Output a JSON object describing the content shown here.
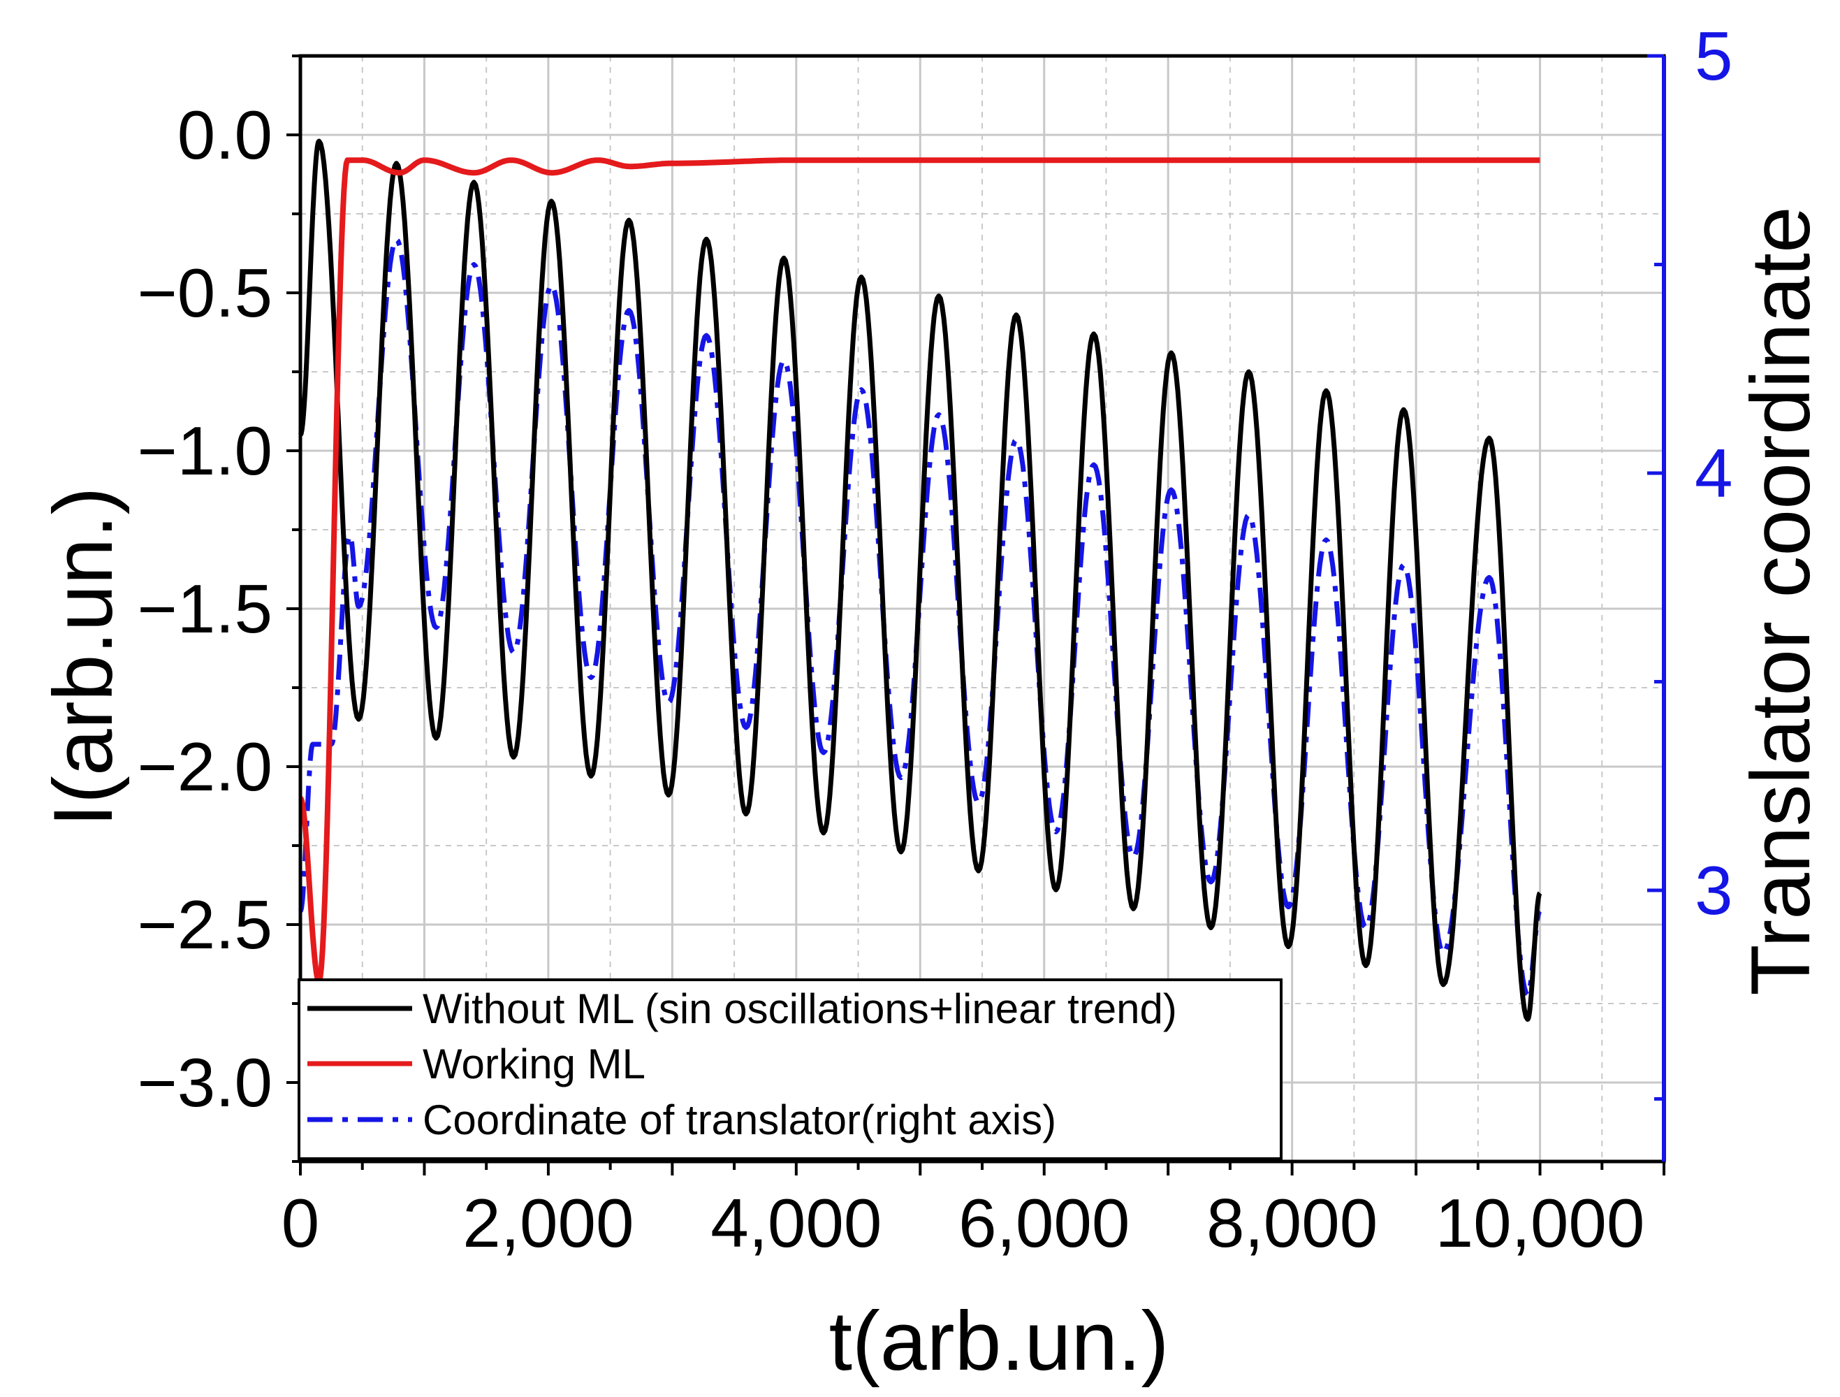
{
  "chart_data": {
    "type": "line",
    "xlabel": "t(arb.un.)",
    "ylabel": "I(arb.un.)",
    "y2label": "Translator coordinate",
    "xlim": [
      0,
      11000
    ],
    "ylim": [
      -3.25,
      0.25
    ],
    "y2lim": [
      2.35,
      5.0
    ],
    "grid": true,
    "legend_position": "bottom-left",
    "x_ticks": [
      "0",
      "2,000",
      "4,000",
      "6,000",
      "8,000",
      "10,000"
    ],
    "x_tick_values": [
      0,
      2000,
      4000,
      6000,
      8000,
      10000
    ],
    "y_ticks": [
      "0.0",
      "−0.5",
      "−1.0",
      "−1.5",
      "−2.0",
      "−2.5",
      "−3.0"
    ],
    "y_tick_values": [
      0,
      -0.5,
      -1,
      -1.5,
      -2,
      -2.5,
      -3
    ],
    "y2_ticks": [
      "3",
      "4",
      "5"
    ],
    "y2_tick_values": [
      3,
      4,
      5
    ],
    "colors": {
      "without_ml": "#000000",
      "working_ml": "#e41a1c",
      "translator": "#1515e6",
      "grid": "#c8c8c8"
    },
    "series": [
      {
        "name": "Without ML (sin oscillations+linear trend)",
        "axis": "left",
        "style": "solid",
        "description": "Sinusoidal oscillation, period ~625, peaks decreasing from ~-0.02 at t≈150 to ~-0.96 at t≈9590, troughs decreasing from ~-1.85 to ~-2.80",
        "x": [
          0,
          150,
          470,
          775,
          1095,
          1400,
          1720,
          2025,
          2345,
          2650,
          2970,
          3275,
          3595,
          3900,
          4220,
          4525,
          4845,
          5150,
          5470,
          5775,
          6095,
          6400,
          6720,
          7025,
          7345,
          7650,
          7970,
          8275,
          8595,
          8900,
          9220,
          9590,
          9900,
          10000
        ],
        "values": [
          -0.95,
          -0.02,
          -1.85,
          -0.09,
          -1.91,
          -0.15,
          -1.97,
          -0.21,
          -2.03,
          -0.27,
          -2.09,
          -0.33,
          -2.15,
          -0.39,
          -2.21,
          -0.45,
          -2.27,
          -0.51,
          -2.33,
          -0.57,
          -2.39,
          -0.63,
          -2.45,
          -0.69,
          -2.51,
          -0.75,
          -2.57,
          -0.81,
          -2.63,
          -0.87,
          -2.69,
          -0.96,
          -2.8,
          -2.4
        ]
      },
      {
        "name": "Working ML",
        "axis": "left",
        "style": "solid",
        "description": "Starts at ~-2.1, dips to ~-2.68 near t≈150, rises sharply to ~-0.08 by t≈380 and stays nearly flat near -0.08 with small dips",
        "x": [
          0,
          150,
          380,
          500,
          800,
          1000,
          1400,
          1700,
          2030,
          2400,
          2660,
          3000,
          4000,
          5000,
          6000,
          7000,
          8000,
          9000,
          10000
        ],
        "values": [
          -2.1,
          -2.68,
          -0.08,
          -0.08,
          -0.12,
          -0.08,
          -0.12,
          -0.08,
          -0.12,
          -0.08,
          -0.1,
          -0.09,
          -0.08,
          -0.08,
          -0.08,
          -0.08,
          -0.08,
          -0.08,
          -0.08
        ]
      },
      {
        "name": "Coordinate of translator(right axis)",
        "axis": "right",
        "style": "dash-dot",
        "description": "Right-axis translator coordinate; starts ~2.95, steps up to ~3.35, then oscillates with period ~625, peaks decreasing from ~4.55 to ~3.75, troughs decreasing from ~3.68 to ~2.75",
        "x": [
          0,
          100,
          250,
          400,
          470,
          775,
          1095,
          1400,
          1720,
          2025,
          2345,
          2650,
          2970,
          3275,
          3595,
          3900,
          4220,
          4525,
          4845,
          5150,
          5470,
          5775,
          6095,
          6400,
          6720,
          7025,
          7345,
          7650,
          7970,
          8275,
          8595,
          8900,
          9220,
          9590,
          9900,
          10000
        ],
        "values": [
          2.95,
          3.35,
          3.35,
          3.85,
          3.68,
          4.56,
          3.63,
          4.5,
          3.57,
          4.45,
          3.51,
          4.39,
          3.45,
          4.33,
          3.39,
          4.27,
          3.33,
          4.2,
          3.27,
          4.14,
          3.21,
          4.08,
          3.14,
          4.02,
          3.08,
          3.96,
          3.02,
          3.9,
          2.96,
          3.84,
          2.91,
          3.78,
          2.85,
          3.75,
          2.75,
          2.95
        ]
      }
    ]
  }
}
